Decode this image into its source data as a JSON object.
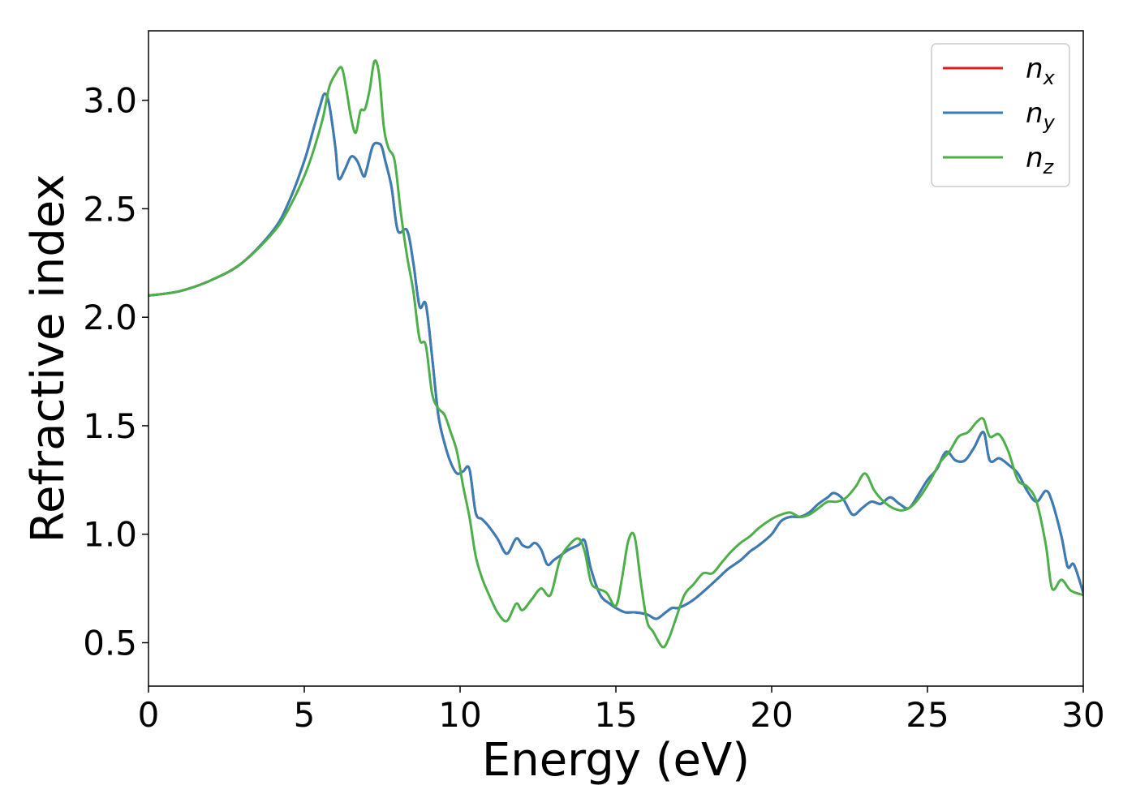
{
  "chart_data": {
    "type": "line",
    "xlabel": "Energy (eV)",
    "ylabel": "Refractive index",
    "xlim": [
      0,
      30
    ],
    "ylim": [
      0.3,
      3.32
    ],
    "xticks": [
      0,
      5,
      10,
      15,
      20,
      25,
      30
    ],
    "xtick_labels": [
      "0",
      "5",
      "10",
      "15",
      "20",
      "25",
      "30"
    ],
    "yticks": [
      0.5,
      1.0,
      1.5,
      2.0,
      2.5,
      3.0
    ],
    "ytick_labels": [
      "0.5",
      "1.0",
      "1.5",
      "2.0",
      "2.5",
      "3.0"
    ],
    "grid": false,
    "legend": {
      "placement": "top-right",
      "entries": [
        {
          "base": "n",
          "sub": "x",
          "color": "#e41a1c"
        },
        {
          "base": "n",
          "sub": "y",
          "color": "#377eb8"
        },
        {
          "base": "n",
          "sub": "z",
          "color": "#4daf4a"
        }
      ]
    },
    "series": [
      {
        "name": "n_x",
        "color": "#e41a1c",
        "x": [
          0,
          1,
          2,
          3,
          4,
          4.5,
          5,
          5.3,
          5.5,
          5.65,
          5.8,
          6.0,
          6.1,
          6.3,
          6.5,
          6.7,
          6.9,
          7.0,
          7.2,
          7.4,
          7.5,
          7.6,
          7.8,
          8.0,
          8.3,
          8.5,
          8.7,
          8.9,
          9.1,
          9.3,
          9.5,
          9.7,
          9.9,
          10.1,
          10.3,
          10.5,
          10.7,
          10.9,
          11.2,
          11.5,
          11.8,
          12.0,
          12.2,
          12.4,
          12.6,
          12.8,
          13.0,
          13.2,
          13.5,
          13.8,
          14.0,
          14.2,
          14.5,
          14.8,
          15.0,
          15.3,
          15.6,
          16.0,
          16.3,
          16.6,
          16.8,
          17.0,
          17.3,
          17.6,
          18.0,
          18.3,
          18.6,
          19.0,
          19.3,
          19.6,
          20.0,
          20.3,
          20.6,
          20.9,
          21.2,
          21.5,
          21.8,
          22.0,
          22.3,
          22.6,
          22.9,
          23.2,
          23.5,
          23.8,
          24.1,
          24.4,
          24.7,
          25.0,
          25.3,
          25.6,
          25.9,
          26.2,
          26.5,
          26.8,
          27.0,
          27.3,
          27.6,
          27.9,
          28.2,
          28.5,
          28.8,
          29.0,
          29.3,
          29.5,
          29.7,
          30.0
        ],
        "y": [
          2.1,
          2.12,
          2.17,
          2.25,
          2.4,
          2.53,
          2.72,
          2.87,
          2.97,
          3.03,
          2.98,
          2.78,
          2.64,
          2.68,
          2.74,
          2.72,
          2.65,
          2.68,
          2.79,
          2.8,
          2.78,
          2.72,
          2.6,
          2.4,
          2.4,
          2.25,
          2.05,
          2.06,
          1.82,
          1.55,
          1.42,
          1.33,
          1.28,
          1.29,
          1.3,
          1.1,
          1.07,
          1.04,
          0.98,
          0.91,
          0.98,
          0.95,
          0.94,
          0.96,
          0.93,
          0.86,
          0.88,
          0.9,
          0.93,
          0.95,
          0.97,
          0.84,
          0.72,
          0.68,
          0.66,
          0.64,
          0.64,
          0.63,
          0.61,
          0.64,
          0.66,
          0.66,
          0.68,
          0.71,
          0.76,
          0.8,
          0.84,
          0.88,
          0.92,
          0.95,
          1.0,
          1.06,
          1.08,
          1.08,
          1.1,
          1.14,
          1.17,
          1.19,
          1.16,
          1.09,
          1.12,
          1.15,
          1.14,
          1.17,
          1.14,
          1.12,
          1.18,
          1.25,
          1.3,
          1.38,
          1.34,
          1.34,
          1.4,
          1.47,
          1.34,
          1.35,
          1.32,
          1.28,
          1.2,
          1.15,
          1.2,
          1.15,
          0.99,
          0.85,
          0.86,
          0.73
        ]
      },
      {
        "name": "n_y",
        "color": "#377eb8",
        "x": [
          0,
          1,
          2,
          3,
          4,
          4.5,
          5,
          5.3,
          5.5,
          5.65,
          5.8,
          6.0,
          6.1,
          6.3,
          6.5,
          6.7,
          6.9,
          7.0,
          7.2,
          7.4,
          7.5,
          7.6,
          7.8,
          8.0,
          8.3,
          8.5,
          8.7,
          8.9,
          9.1,
          9.3,
          9.5,
          9.7,
          9.9,
          10.1,
          10.3,
          10.5,
          10.7,
          10.9,
          11.2,
          11.5,
          11.8,
          12.0,
          12.2,
          12.4,
          12.6,
          12.8,
          13.0,
          13.2,
          13.5,
          13.8,
          14.0,
          14.2,
          14.5,
          14.8,
          15.0,
          15.3,
          15.6,
          16.0,
          16.3,
          16.6,
          16.8,
          17.0,
          17.3,
          17.6,
          18.0,
          18.3,
          18.6,
          19.0,
          19.3,
          19.6,
          20.0,
          20.3,
          20.6,
          20.9,
          21.2,
          21.5,
          21.8,
          22.0,
          22.3,
          22.6,
          22.9,
          23.2,
          23.5,
          23.8,
          24.1,
          24.4,
          24.7,
          25.0,
          25.3,
          25.6,
          25.9,
          26.2,
          26.5,
          26.8,
          27.0,
          27.3,
          27.6,
          27.9,
          28.2,
          28.5,
          28.8,
          29.0,
          29.3,
          29.5,
          29.7,
          30.0
        ],
        "y": [
          2.1,
          2.12,
          2.17,
          2.25,
          2.4,
          2.53,
          2.72,
          2.87,
          2.97,
          3.03,
          2.98,
          2.78,
          2.64,
          2.68,
          2.74,
          2.72,
          2.65,
          2.68,
          2.79,
          2.8,
          2.78,
          2.72,
          2.6,
          2.4,
          2.4,
          2.25,
          2.05,
          2.06,
          1.82,
          1.55,
          1.42,
          1.33,
          1.28,
          1.29,
          1.3,
          1.1,
          1.07,
          1.04,
          0.98,
          0.91,
          0.98,
          0.95,
          0.94,
          0.96,
          0.93,
          0.86,
          0.88,
          0.9,
          0.93,
          0.95,
          0.97,
          0.84,
          0.72,
          0.68,
          0.66,
          0.64,
          0.64,
          0.63,
          0.61,
          0.64,
          0.66,
          0.66,
          0.68,
          0.71,
          0.76,
          0.8,
          0.84,
          0.88,
          0.92,
          0.95,
          1.0,
          1.06,
          1.08,
          1.08,
          1.1,
          1.14,
          1.17,
          1.19,
          1.16,
          1.09,
          1.12,
          1.15,
          1.14,
          1.17,
          1.14,
          1.12,
          1.18,
          1.25,
          1.3,
          1.38,
          1.34,
          1.34,
          1.4,
          1.47,
          1.34,
          1.35,
          1.32,
          1.28,
          1.2,
          1.15,
          1.2,
          1.15,
          0.99,
          0.85,
          0.86,
          0.73
        ]
      },
      {
        "name": "n_z",
        "color": "#4daf4a",
        "x": [
          0,
          1,
          2,
          3,
          4,
          4.5,
          5,
          5.3,
          5.6,
          5.8,
          6.0,
          6.2,
          6.35,
          6.5,
          6.65,
          6.8,
          6.95,
          7.1,
          7.25,
          7.4,
          7.55,
          7.7,
          7.9,
          8.1,
          8.3,
          8.5,
          8.7,
          8.9,
          9.1,
          9.3,
          9.5,
          9.7,
          9.9,
          10.1,
          10.3,
          10.5,
          10.7,
          10.9,
          11.2,
          11.5,
          11.8,
          12.0,
          12.3,
          12.6,
          12.9,
          13.2,
          13.5,
          13.8,
          14.0,
          14.2,
          14.4,
          14.7,
          15.0,
          15.2,
          15.4,
          15.6,
          15.8,
          16.0,
          16.2,
          16.5,
          16.7,
          16.9,
          17.2,
          17.5,
          17.8,
          18.1,
          18.4,
          18.7,
          19.0,
          19.3,
          19.6,
          20.0,
          20.3,
          20.6,
          20.9,
          21.2,
          21.5,
          21.8,
          22.1,
          22.4,
          22.7,
          23.0,
          23.3,
          23.6,
          23.9,
          24.2,
          24.5,
          24.8,
          25.1,
          25.4,
          25.7,
          26.0,
          26.3,
          26.6,
          26.8,
          27.0,
          27.3,
          27.6,
          27.9,
          28.2,
          28.5,
          28.8,
          29.0,
          29.3,
          29.6,
          30.0
        ],
        "y": [
          2.1,
          2.12,
          2.17,
          2.25,
          2.39,
          2.5,
          2.65,
          2.77,
          2.92,
          3.06,
          3.12,
          3.15,
          3.05,
          2.92,
          2.85,
          2.95,
          2.96,
          3.05,
          3.18,
          3.12,
          2.88,
          2.78,
          2.72,
          2.48,
          2.28,
          2.12,
          1.9,
          1.87,
          1.65,
          1.58,
          1.55,
          1.47,
          1.38,
          1.22,
          1.08,
          0.9,
          0.8,
          0.73,
          0.64,
          0.6,
          0.68,
          0.65,
          0.7,
          0.75,
          0.72,
          0.88,
          0.95,
          0.98,
          0.92,
          0.78,
          0.75,
          0.73,
          0.67,
          0.8,
          0.97,
          0.99,
          0.78,
          0.6,
          0.55,
          0.48,
          0.52,
          0.6,
          0.72,
          0.77,
          0.82,
          0.82,
          0.87,
          0.92,
          0.96,
          0.99,
          1.03,
          1.07,
          1.09,
          1.1,
          1.08,
          1.09,
          1.12,
          1.15,
          1.15,
          1.17,
          1.22,
          1.28,
          1.2,
          1.15,
          1.12,
          1.11,
          1.13,
          1.18,
          1.25,
          1.33,
          1.38,
          1.45,
          1.47,
          1.52,
          1.53,
          1.45,
          1.46,
          1.38,
          1.25,
          1.22,
          1.15,
          0.95,
          0.75,
          0.79,
          0.74,
          0.72
        ]
      }
    ]
  }
}
